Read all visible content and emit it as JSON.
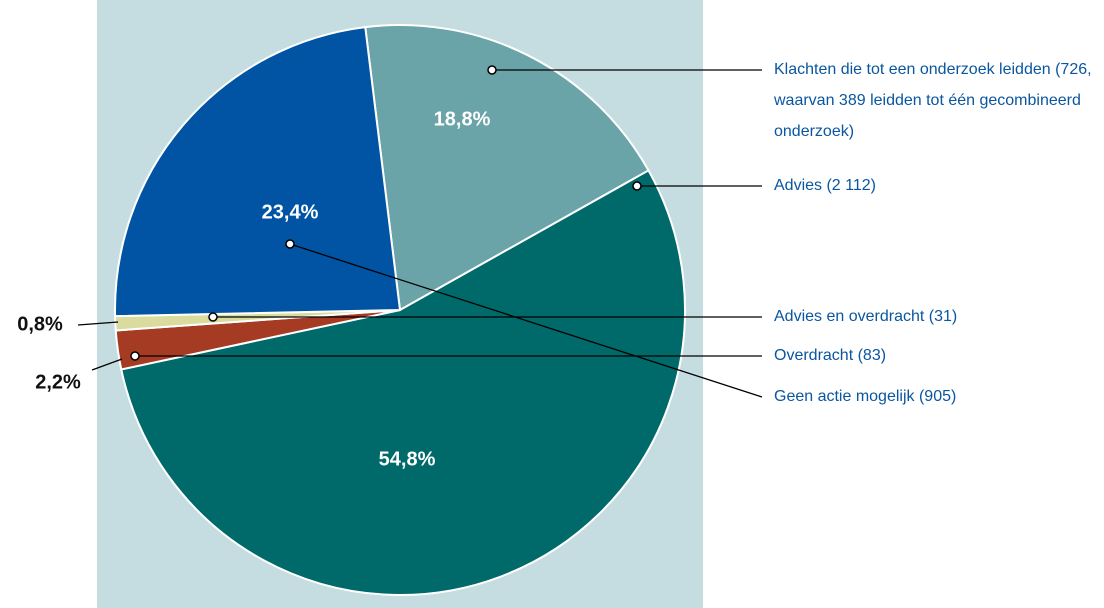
{
  "chart_data": {
    "type": "pie",
    "categories": [
      "Klachten die tot een onderzoek leidden (726, waarvan 389 leidden tot één gecombineerd onderzoek)",
      "Advies (2 112)",
      "Overdracht (83)",
      "Advies en overdracht (31)",
      "Geen actie mogelijk (905)"
    ],
    "values": [
      18.8,
      54.8,
      2.2,
      0.8,
      23.4
    ],
    "value_labels": [
      "18,8%",
      "54,8%",
      "2,2%",
      "0,8%",
      "23,4%"
    ],
    "colors": [
      "#6aa3a8",
      "#006a6a",
      "#a63b24",
      "#d9dc9e",
      "#0054a3"
    ]
  }
}
